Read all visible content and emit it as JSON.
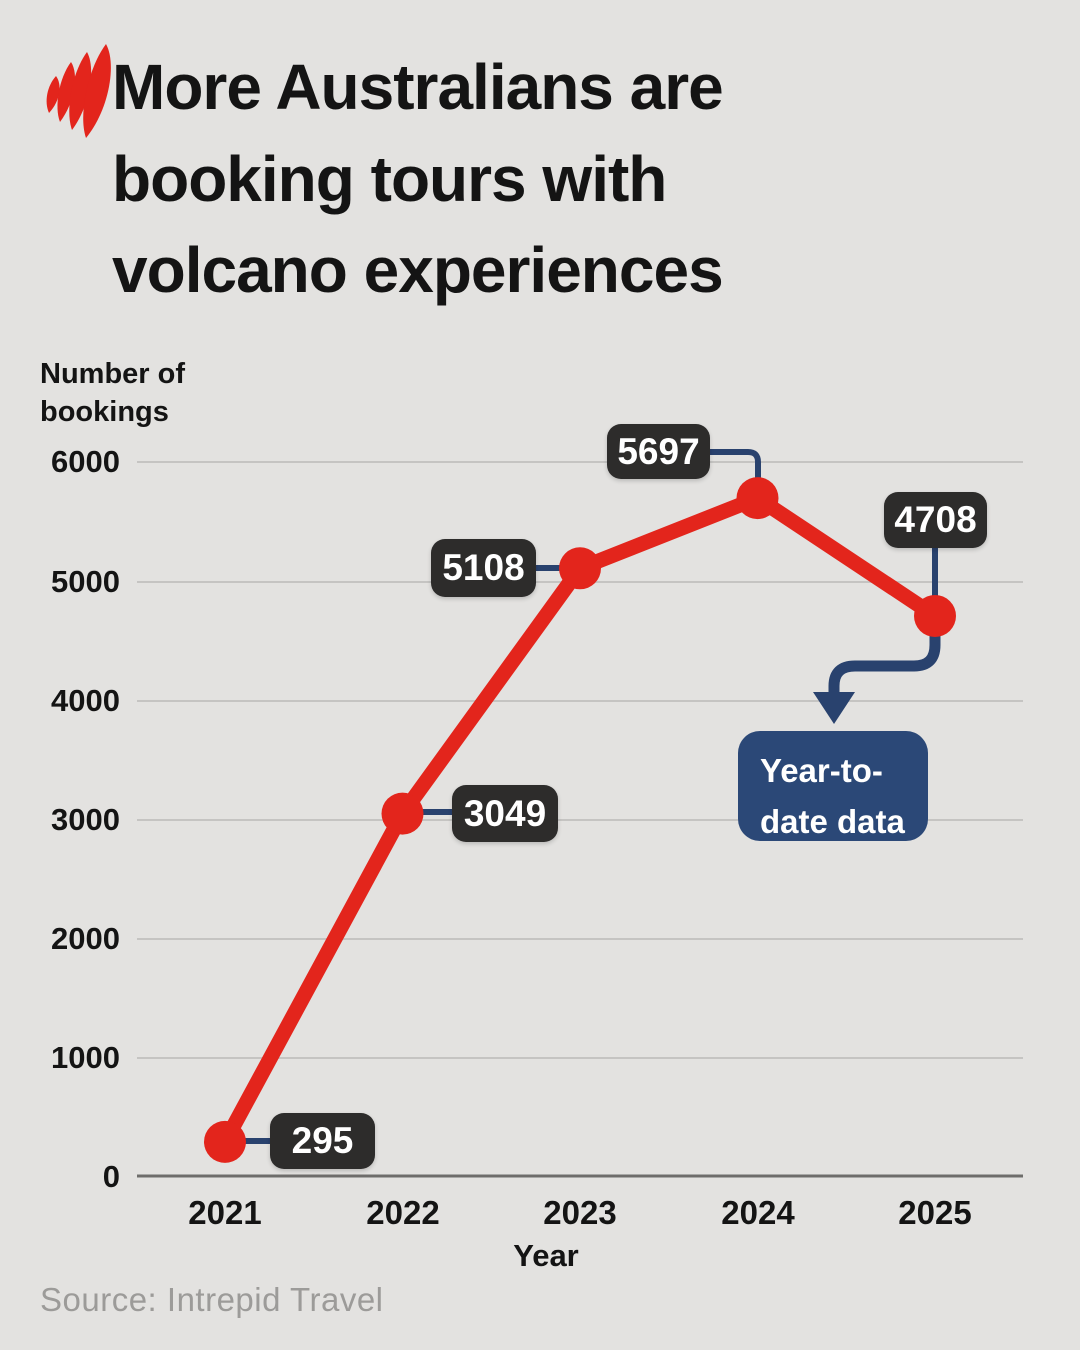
{
  "header": {
    "logo_name": "sbs-flame-logo",
    "title_lines": [
      "More Australians are",
      "booking tours with",
      "volcano experiences"
    ]
  },
  "chart_data": {
    "type": "line",
    "title": "More Australians are booking tours with volcano experiences",
    "x": [
      "2021",
      "2022",
      "2023",
      "2024",
      "2025"
    ],
    "values": [
      295,
      3049,
      5108,
      5697,
      4708
    ],
    "value_labels": [
      "295",
      "3049",
      "5108",
      "5697",
      "4708"
    ],
    "xlabel": "Year",
    "ylabel": "Number of bookings",
    "yticks": [
      "0",
      "1000",
      "2000",
      "3000",
      "4000",
      "5000",
      "6000"
    ],
    "ylim": [
      0,
      6000
    ],
    "grid": true,
    "legend": "none",
    "annotation": {
      "text": "Year-to-date data",
      "applies_to": "2025"
    }
  },
  "source": "Source: Intrepid Travel",
  "colors": {
    "background": "#e3e2e0",
    "line_red": "#e3251c",
    "navy": "#29426e",
    "annotation_box": "#2b4877",
    "value_label_box": "#2d2c2b",
    "gridline": "#c5c4c2",
    "axis_line": "#6e6d6b",
    "source_text": "#9c9b99"
  }
}
